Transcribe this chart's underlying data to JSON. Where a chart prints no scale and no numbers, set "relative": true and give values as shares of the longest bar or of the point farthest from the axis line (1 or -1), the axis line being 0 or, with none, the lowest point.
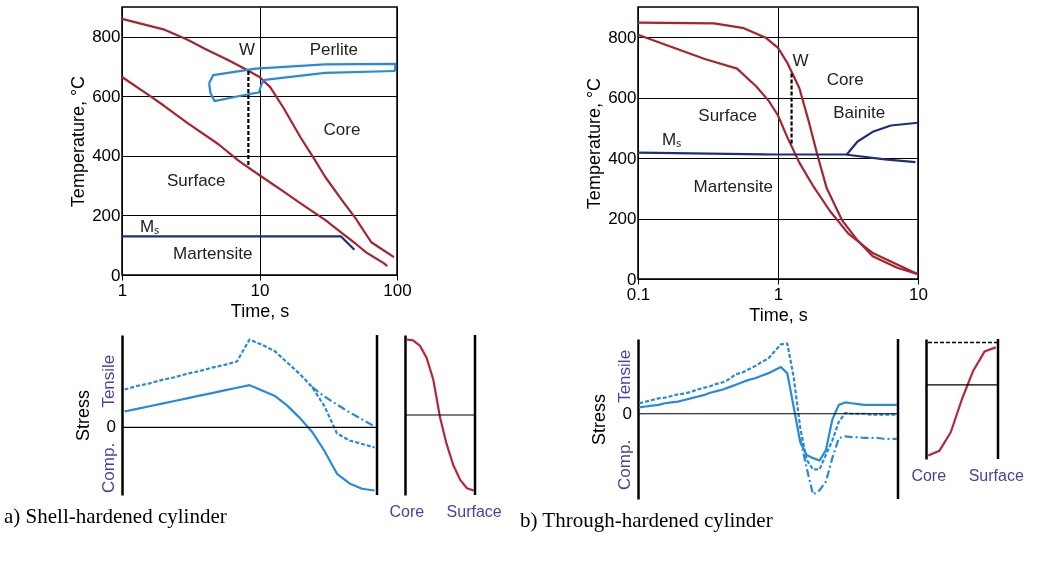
{
  "chart_data": [
    {
      "type": "line",
      "xlabel": "Time, s",
      "ylabel": "Temperature, °C",
      "log": "x",
      "xlim": [
        1,
        100
      ],
      "xticks": [
        1,
        10,
        100
      ],
      "ylim": [
        0,
        900
      ],
      "yticks": [
        0,
        200,
        400,
        600,
        800
      ],
      "grid": true,
      "series": [
        {
          "color": "#a8232f",
          "x": [
            1,
            1.5,
            2,
            3,
            5,
            7,
            10,
            15,
            20,
            30,
            40,
            50,
            60,
            80,
            85
          ],
          "values": [
            665,
            610,
            570,
            510,
            440,
            385,
            335,
            280,
            240,
            185,
            140,
            105,
            75,
            40,
            30
          ]
        },
        {
          "color": "#a8232f",
          "x": [
            1,
            2,
            3,
            4,
            6,
            8,
            10,
            12,
            15,
            20,
            25,
            30,
            40,
            50,
            65,
            95
          ],
          "values": [
            860,
            825,
            790,
            760,
            720,
            690,
            665,
            630,
            560,
            460,
            390,
            330,
            250,
            190,
            110,
            60
          ]
        },
        {
          "color": "#2a8ad8",
          "x": [
            4.3,
            4.6,
            9.4,
            30,
            97,
            97
          ],
          "values": [
            644,
            671,
            693,
            707,
            709,
            685
          ]
        },
        {
          "color": "#2a8ad8",
          "x": [
            4.3,
            4.4,
            4.7,
            7.3,
            9.9,
            10.4,
            10.9,
            30,
            97
          ],
          "values": [
            644,
            611,
            584,
            602,
            613,
            644,
            655,
            679,
            685
          ]
        },
        {
          "color": "#1f2f7a",
          "x": [
            1,
            39,
            49
          ],
          "values": [
            130,
            130,
            85
          ]
        },
        {
          "color": "#000000",
          "line_style": "dashed",
          "x": [
            8.3,
            8.3
          ],
          "values": [
            685,
            365
          ]
        }
      ],
      "annotations": [
        "Surface",
        "Core",
        "Perlite",
        "W",
        "Mₛ",
        "Martensite"
      ]
    },
    {
      "type": "line",
      "xlabel": "Time, s",
      "ylabel": "Temperature, °C",
      "log": "x",
      "xlim": [
        0.1,
        10
      ],
      "xticks": [
        0.1,
        1,
        10
      ],
      "ylim": [
        0,
        900
      ],
      "yticks": [
        0,
        200,
        400,
        600,
        800
      ],
      "grid": true,
      "series": [
        {
          "color": "#a8232f",
          "x": [
            0.1,
            0.35,
            0.57,
            0.82,
            1,
            1.16,
            1.42,
            1.65,
            1.92,
            2.23,
            2.88,
            3.7,
            4.75,
            7.1,
            10
          ],
          "values": [
            848,
            846,
            830,
            798,
            765,
            717,
            632,
            525,
            407,
            300,
            193,
            128,
            75,
            37,
            16
          ]
        },
        {
          "color": "#a8232f",
          "x": [
            0.1,
            0.18,
            0.3,
            0.51,
            0.7,
            0.86,
            1,
            1.16,
            1.42,
            1.77,
            2.35,
            3.18,
            4.75,
            7.1,
            10
          ],
          "values": [
            808,
            765,
            728,
            696,
            637,
            589,
            541,
            471,
            385,
            310,
            225,
            150,
            86,
            48,
            16
          ]
        },
        {
          "color": "#1f2f7a",
          "x": [
            0.1,
            1,
            3.02,
            5.8,
            9.6
          ],
          "values": [
            418,
            412,
            412,
            396,
            387
          ]
        },
        {
          "color": "#1f2f7a",
          "x": [
            3.1,
            3.7,
            4.75,
            6.4,
            10
          ],
          "values": [
            412,
            455,
            487,
            508,
            517
          ]
        },
        {
          "color": "#000000",
          "line_style": "dashed",
          "x": [
            1.25,
            1.25
          ],
          "values": [
            680,
            444
          ]
        }
      ],
      "annotations": [
        "Surface",
        "Core",
        "Bainite",
        "W",
        "Mₛ",
        "Martensite"
      ]
    },
    {
      "type": "line",
      "title": "a) Shell-hardened cylinder",
      "ylabel": "Stress",
      "relative": true,
      "categories": [
        null,
        null,
        null,
        null,
        null,
        null,
        null,
        null,
        null,
        null,
        null,
        null,
        null,
        null,
        null,
        null,
        null,
        null,
        null,
        null,
        null
      ],
      "series": [
        {
          "color": "#2a8ad8",
          "values": [
            0.18,
            0.21,
            0.24,
            0.27,
            0.3,
            0.33,
            0.36,
            0.39,
            0.42,
            0.45,
            0.48,
            0.42,
            0.36,
            0.25,
            0.11,
            -0.05,
            -0.27,
            -0.53,
            -0.64,
            -0.7,
            -0.72
          ]
        },
        {
          "color": "#2a8ad8",
          "line_style": "dashed",
          "values": [
            0.43,
            0.47,
            0.5,
            0.54,
            0.57,
            0.61,
            0.64,
            0.68,
            0.71,
            0.75,
            1,
            0.94,
            0.87,
            0.74,
            0.61,
            0.46,
            0.24,
            -0.07,
            -0.15,
            -0.19,
            -0.23
          ]
        },
        {
          "color": "#2a8ad8",
          "line_style": "dotted",
          "values": [
            null,
            null,
            null,
            null,
            null,
            null,
            null,
            null,
            null,
            null,
            null,
            null,
            null,
            null,
            null,
            0.46,
            0.35,
            0.26,
            0.17,
            0.09,
            0.01
          ]
        }
      ],
      "annotations": [
        "Tensile",
        "0",
        "Comp."
      ]
    },
    {
      "type": "line",
      "relative": true,
      "tick_labels": "x",
      "categories": [
        "Core",
        null,
        null,
        null,
        null,
        null,
        null,
        null,
        null,
        null,
        "Surface"
      ],
      "series": [
        {
          "color": "#b5283a",
          "values": [
            1,
            0.99,
            0.92,
            0.76,
            0.47,
            -0.03,
            -0.39,
            -0.67,
            -0.86,
            -0.97,
            -1
          ]
        }
      ]
    },
    {
      "type": "line",
      "title": "b) Through-hardened cylinder",
      "ylabel": "Stress",
      "relative": true,
      "categories": [
        null,
        null,
        null,
        null,
        null,
        null,
        null,
        null,
        null,
        null,
        null,
        null,
        null,
        null,
        null,
        null,
        null,
        null,
        null,
        null,
        null,
        null,
        null,
        null,
        null,
        null,
        null,
        null,
        null,
        null,
        null,
        null,
        null,
        null,
        null,
        null,
        null,
        null,
        null,
        null,
        null
      ],
      "series": [
        {
          "color": "#2a8ad8",
          "values": [
            0.08,
            0.09,
            0.1,
            0.11,
            0.13,
            0.14,
            0.15,
            0.17,
            0.19,
            0.21,
            0.23,
            0.26,
            0.28,
            0.3,
            0.33,
            0.36,
            0.39,
            0.42,
            0.44,
            0.47,
            0.5,
            0.54,
            0.58,
            0.5,
            0.08,
            -0.35,
            -0.51,
            -0.55,
            -0.58,
            -0.45,
            -0.07,
            0.11,
            0.14,
            0.13,
            0.12,
            0.11,
            0.11,
            0.11,
            0.11,
            0.11,
            0.11
          ]
        },
        {
          "color": "#2a8ad8",
          "line_style": "dashed",
          "values": [
            0.13,
            0.15,
            0.17,
            0.19,
            0.2,
            0.22,
            0.24,
            0.25,
            0.27,
            0.3,
            0.32,
            0.34,
            0.37,
            0.39,
            0.43,
            0.49,
            0.51,
            0.55,
            0.59,
            0.64,
            0.68,
            0.77,
            0.86,
            0.87,
            0.45,
            -0.17,
            -0.57,
            -0.69,
            -0.69,
            -0.51,
            -0.33,
            -0.1,
            0.01,
            0,
            0,
            0,
            -0.01,
            -0.01,
            -0.01,
            -0.01,
            -0.01
          ]
        },
        {
          "color": "#2a8ad8",
          "line_style": "dotted",
          "values": [
            null,
            null,
            null,
            null,
            null,
            null,
            null,
            null,
            null,
            null,
            null,
            null,
            null,
            null,
            null,
            null,
            null,
            null,
            null,
            null,
            null,
            null,
            null,
            null,
            null,
            -0.3,
            -0.67,
            -1,
            -0.95,
            -0.84,
            -0.55,
            -0.3,
            -0.28,
            -0.29,
            -0.29,
            -0.3,
            -0.3,
            -0.3,
            -0.31,
            -0.31,
            -0.31
          ]
        }
      ],
      "annotations": [
        "Tensile",
        "0",
        "Comp."
      ]
    },
    {
      "type": "line",
      "relative": true,
      "tick_labels": "x",
      "categories": [
        "Core",
        null,
        null,
        null,
        null,
        null,
        "Surface"
      ],
      "series": [
        {
          "color": "#b5283a",
          "values": [
            -1,
            -0.93,
            -0.67,
            -0.2,
            0.2,
            0.47,
            0.53
          ]
        }
      ],
      "ref_lines": [
        {
          "axis": "y",
          "value": 0.6,
          "color": "#000000",
          "line_style": "dashed"
        }
      ]
    }
  ]
}
